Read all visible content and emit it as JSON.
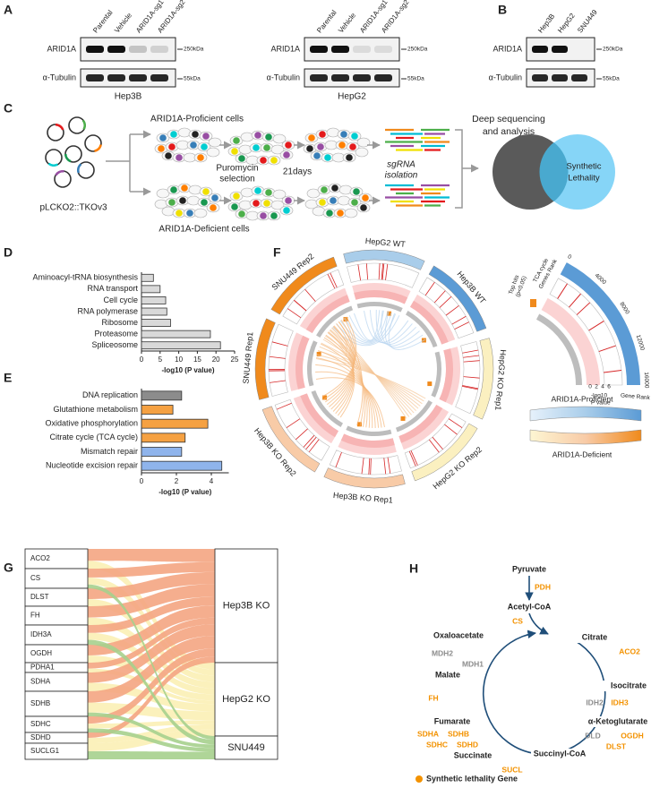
{
  "panel_labels": [
    "A",
    "B",
    "C",
    "D",
    "E",
    "F",
    "G",
    "H"
  ],
  "panel_a": {
    "blots": [
      {
        "cell_line": "Hep3B",
        "lanes": [
          "Parental",
          "Vehicle",
          "ARID1A-sg1",
          "ARID1A-sg2"
        ]
      },
      {
        "cell_line": "HepG2",
        "lanes": [
          "Parental",
          "Vehicle",
          "ARID1A-sg1",
          "ARID1A-sg2"
        ]
      }
    ],
    "rows": [
      "ARID1A",
      "α-Tubulin"
    ],
    "markers": [
      "250kDa",
      "55kDa"
    ]
  },
  "panel_b": {
    "lanes": [
      "Hep3B",
      "HepG2",
      "SNU449"
    ],
    "rows": [
      "ARID1A",
      "α-Tubulin"
    ],
    "markers": [
      "250kDa",
      "55kDa"
    ]
  },
  "panel_c": {
    "vector": "pLCKO2::TKOv3",
    "proficient": "ARID1A-Proficient cells",
    "deficient": "ARID1A-Deficient cells",
    "selection": [
      "Puromycin",
      "selection"
    ],
    "duration": "21days",
    "isolation": [
      "sgRNA",
      "isolation"
    ],
    "analysis": [
      "Deep sequencing",
      "and analysis"
    ],
    "overlap": [
      "Synthetic",
      "Lethality"
    ]
  },
  "chart_data": [
    {
      "type": "bar",
      "orientation": "horizontal",
      "categories": [
        "Aminoacyl-tRNA biosynthesis",
        "RNA transport",
        "Cell cycle",
        "RNA polymerase",
        "Ribosome",
        "Proteasome",
        "Spliceosome"
      ],
      "values": [
        3.2,
        5,
        6.5,
        6.8,
        7.8,
        18.5,
        21.2
      ],
      "color": "#d9d9d9",
      "xlim": [
        0,
        25
      ],
      "xticks": [
        0,
        5,
        10,
        15,
        20,
        25
      ],
      "xlabel": "-log10 (P value)"
    },
    {
      "type": "bar",
      "orientation": "horizontal",
      "categories": [
        "DNA replication",
        "Glutathione metabolism",
        "Oxidative phosphorylation",
        "Citrate cycle (TCA cycle)",
        "Mismatch repair",
        "Nucleotide excision repair"
      ],
      "values": [
        2.3,
        1.8,
        3.8,
        2.5,
        2.3,
        4.6
      ],
      "colors": [
        "#8c8c8c",
        "#f5a142",
        "#f5a142",
        "#f5a142",
        "#8fb4ec",
        "#8fb4ec"
      ],
      "xlim": [
        0,
        5
      ],
      "xticks": [
        0,
        2,
        4
      ],
      "xlabel": "-log10 (P value)"
    }
  ],
  "panel_f": {
    "samples": [
      {
        "name": "HepG2  WT",
        "color": "#a9cdea"
      },
      {
        "name": "Hep3B  WT",
        "color": "#5b9bd5"
      },
      {
        "name": "HepG2 KO Rep1",
        "color": "#fbf0c0"
      },
      {
        "name": "HepG2 KO Rep2",
        "color": "#fbf0c0"
      },
      {
        "name": "Hep3B KO Rep1",
        "color": "#f8cba7"
      },
      {
        "name": "Hep3B KO Rep2",
        "color": "#f8cba7"
      },
      {
        "name": "SNU449 Rep1",
        "color": "#f08a1c"
      },
      {
        "name": "SNU449 Rep2",
        "color": "#f08a1c"
      }
    ],
    "legend": {
      "tca_rank": [
        "TCA cycle",
        "Genes Rank"
      ],
      "gene_rank": "Gene Rank",
      "gene_rank_ticks": [
        "0",
        "4000",
        "8000",
        "12000",
        "16000"
      ],
      "top_hits": [
        "Top hits",
        "(p<0.05)"
      ],
      "pvalue": [
        "-log10",
        "P value"
      ],
      "pvalue_ticks": [
        "0",
        "2",
        "4",
        "6"
      ],
      "proficient": "ARID1A-Proficient",
      "deficient": "ARID1A-Deficient"
    }
  },
  "panel_g": {
    "genes": [
      "ACO2",
      "CS",
      "DLST",
      "FH",
      "IDH3A",
      "OGDH",
      "PDHA1",
      "SDHA",
      "SDHB",
      "SDHC",
      "SDHD",
      "SUCLG1"
    ],
    "groups": [
      "Hep3B KO",
      "HepG2 KO",
      "SNU449"
    ]
  },
  "panel_h": {
    "metabolites": [
      "Pyruvate",
      "Acetyl-CoA",
      "Citrate",
      "Isocitrate",
      "α-Ketoglutarate",
      "Succinyl-CoA",
      "Succinate",
      "Fumarate",
      "Malate",
      "Oxaloacetate"
    ],
    "enzymes": [
      {
        "label": "PDH",
        "synthetic_lethal": true
      },
      {
        "label": "CS",
        "synthetic_lethal": true
      },
      {
        "label": "ACO2",
        "synthetic_lethal": true
      },
      {
        "label": "IDH2",
        "synthetic_lethal": false
      },
      {
        "label": "IDH3",
        "synthetic_lethal": true
      },
      {
        "label": "OGDH",
        "synthetic_lethal": true
      },
      {
        "label": "DLD",
        "synthetic_lethal": false
      },
      {
        "label": "DLST",
        "synthetic_lethal": true
      },
      {
        "label": "SUCL",
        "synthetic_lethal": true
      },
      {
        "label": "SDHA",
        "synthetic_lethal": true
      },
      {
        "label": "SDHB",
        "synthetic_lethal": true
      },
      {
        "label": "SDHC",
        "synthetic_lethal": true
      },
      {
        "label": "SDHD",
        "synthetic_lethal": true
      },
      {
        "label": "FH",
        "synthetic_lethal": true
      },
      {
        "label": "MDH2",
        "synthetic_lethal": false
      },
      {
        "label": "MDH1",
        "synthetic_lethal": false
      }
    ],
    "legend": "Synthetic lethality Gene"
  }
}
